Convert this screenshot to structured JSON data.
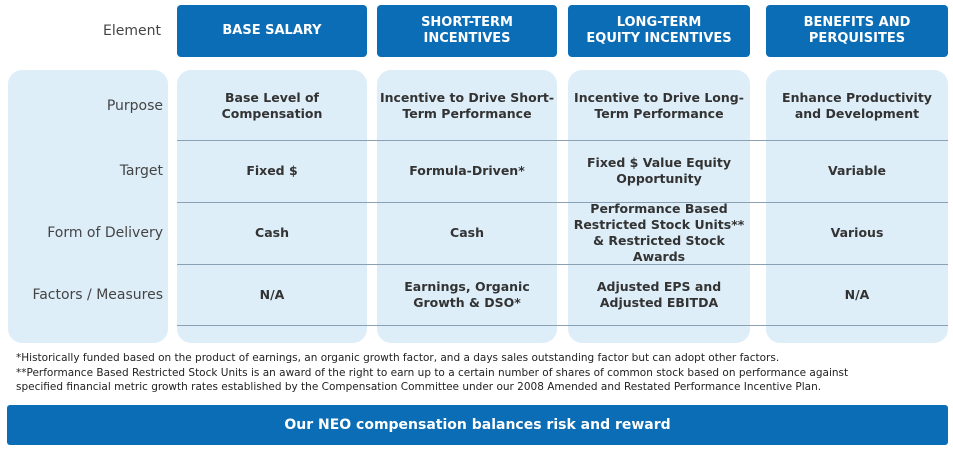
{
  "header": {
    "label": "Element",
    "columns": [
      [
        "BASE SALARY"
      ],
      [
        "SHORT-TERM",
        "INCENTIVES"
      ],
      [
        "LONG-TERM",
        "EQUITY INCENTIVES"
      ],
      [
        "BENEFITS AND",
        "PERQUISITES"
      ]
    ]
  },
  "rows": [
    {
      "label": "Purpose",
      "cells": [
        [
          "Base Level of",
          "Compensation"
        ],
        [
          "Incentive to Drive Short-",
          "Term Performance"
        ],
        [
          "Incentive to Drive Long-",
          "Term Performance"
        ],
        [
          "Enhance Productivity",
          "and Development"
        ]
      ]
    },
    {
      "label": "Target",
      "cells": [
        [
          "Fixed $"
        ],
        [
          "Formula-Driven*"
        ],
        [
          "Fixed $ Value Equity",
          "Opportunity"
        ],
        [
          "Variable"
        ]
      ]
    },
    {
      "label": "Form of Delivery",
      "cells": [
        [
          "Cash"
        ],
        [
          "Cash"
        ],
        [
          "Performance Based",
          "Restricted Stock Units**",
          "& Restricted Stock Awards"
        ],
        [
          "Various"
        ]
      ]
    },
    {
      "label": "Factors / Measures",
      "cells": [
        [
          "N/A"
        ],
        [
          "Earnings, Organic",
          "Growth & DSO*"
        ],
        [
          "Adjusted EPS and",
          "Adjusted EBITDA"
        ],
        [
          "N/A"
        ]
      ]
    }
  ],
  "footnotes": [
    [
      "*Historically funded based on the product of earnings, an organic growth factor, and a days sales outstanding factor but can adopt other factors."
    ],
    [
      "**Performance Based Restricted Stock Units is an award of the right to earn up to a certain number of shares of common stock based on performance against",
      "specified financial metric growth rates established by the Compensation Committee under our 2008 Amended and Restated Performance Incentive Plan."
    ]
  ],
  "banner": "Our NEO compensation balances risk and reward"
}
